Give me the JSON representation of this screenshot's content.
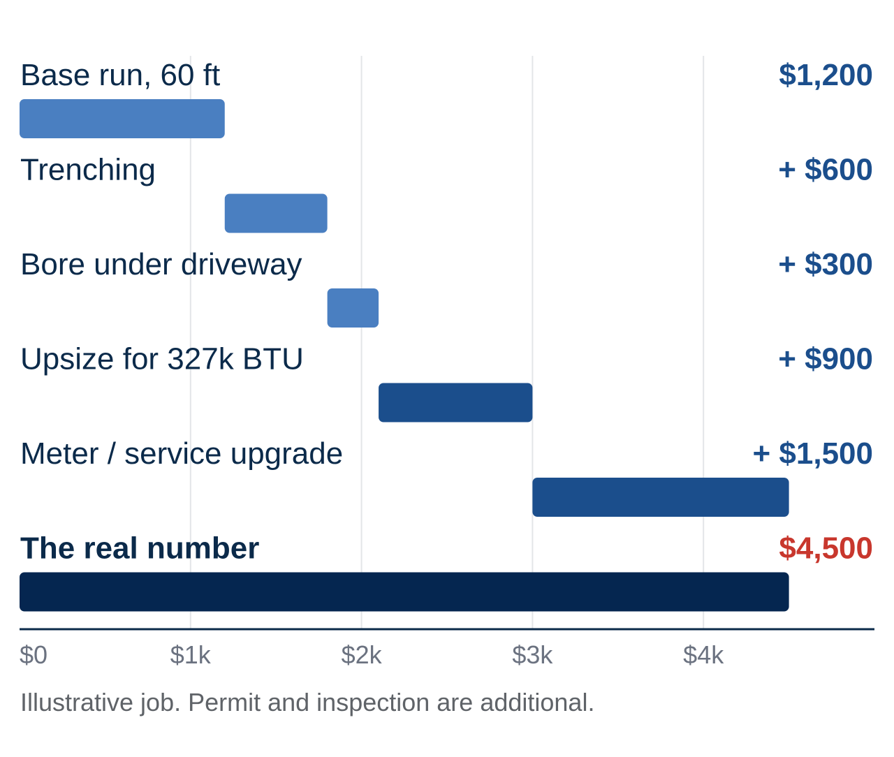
{
  "chart_data": {
    "type": "bar",
    "subtype": "waterfall",
    "orientation": "horizontal",
    "grid": true,
    "xlim": [
      0,
      5000
    ],
    "x_ticks": [
      {
        "value": 0,
        "label": "$0"
      },
      {
        "value": 1000,
        "label": "$1k"
      },
      {
        "value": 2000,
        "label": "$2k"
      },
      {
        "value": 3000,
        "label": "$3k"
      },
      {
        "value": 4000,
        "label": "$4k"
      }
    ],
    "rows": [
      {
        "label": "Base run, 60 ft",
        "value_label": "$1,200",
        "start": 0,
        "end": 1200,
        "value": 1200,
        "color": "#4a7fc1"
      },
      {
        "label": "Trenching",
        "value_label": "+ $600",
        "start": 1200,
        "end": 1800,
        "value": 600,
        "color": "#4a7fc1"
      },
      {
        "label": "Bore under driveway",
        "value_label": "+ $300",
        "start": 1800,
        "end": 2100,
        "value": 300,
        "color": "#4a7fc1"
      },
      {
        "label": "Upsize for 327k BTU",
        "value_label": "+ $900",
        "start": 2100,
        "end": 3000,
        "value": 900,
        "color": "#1b4e8c"
      },
      {
        "label": "Meter / service upgrade",
        "value_label": "+ $1,500",
        "start": 3000,
        "end": 4500,
        "value": 1500,
        "color": "#1b4e8c"
      },
      {
        "label": "The real number",
        "value_label": "$4,500",
        "start": 0,
        "end": 4500,
        "value": 4500,
        "color": "#052650",
        "total": true
      }
    ],
    "colors": {
      "label": "#0b2a4a",
      "value": "#1b4e8c",
      "total_value": "#c8372d",
      "axis": "#0b2a4a",
      "grid": "#e3e5e8",
      "tick": "#6b7280"
    }
  },
  "footnote": "Illustrative job. Permit and inspection are additional."
}
